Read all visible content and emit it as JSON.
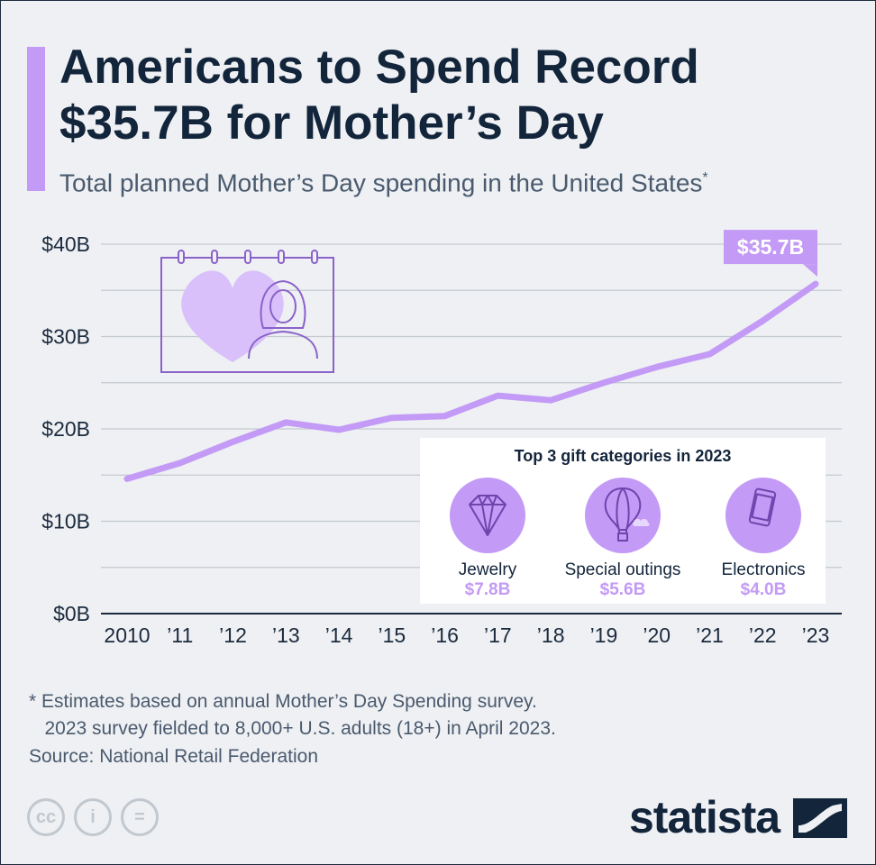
{
  "title": "Americans to Spend Record $35.7B for Mother’s Day",
  "subtitle": "Total planned Mother’s Day spending in the United States",
  "subtitle_mark": "*",
  "chart_data": {
    "type": "line",
    "x": [
      "2010",
      "’11",
      "’12",
      "’13",
      "’14",
      "’15",
      "’16",
      "’17",
      "’18",
      "’19",
      "’20",
      "’21",
      "’22",
      "’23"
    ],
    "series": [
      {
        "values": [
          14.6,
          16.3,
          18.6,
          20.7,
          19.9,
          21.2,
          21.4,
          23.6,
          23.1,
          25.0,
          26.7,
          28.1,
          31.7,
          35.7
        ]
      }
    ],
    "y_ticks": [
      "$0B",
      "$10B",
      "$20B",
      "$30B",
      "$40B"
    ],
    "ylim": [
      0,
      40
    ],
    "grid": true,
    "callout": "$35.7B",
    "color": "#c39af6"
  },
  "inset": {
    "title": "Top 3 gift categories in 2023",
    "categories": [
      {
        "name": "Jewelry",
        "amount": "$7.8B",
        "icon": "diamond-icon"
      },
      {
        "name": "Special outings",
        "amount": "$5.6B",
        "icon": "hot-air-balloon-icon"
      },
      {
        "name": "Electronics",
        "amount": "$4.0B",
        "icon": "smartphone-icon"
      }
    ]
  },
  "footnote": "* Estimates based on annual Mother’s Day Spending survey.\n   2023 survey fielded to 8,000+ U.S. adults (18+) in April 2023.",
  "source": "Source: National Retail Federation",
  "license_icons": [
    "cc",
    "i",
    "="
  ],
  "brand": "statista"
}
